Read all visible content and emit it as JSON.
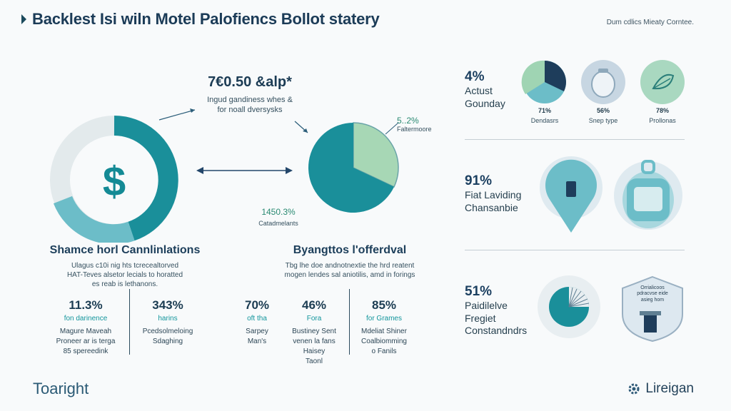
{
  "header": {
    "title": "Backlest Isi wiln Motel Palofiencs Bollot statery",
    "note": "Dum cdlics Mieaty Corntee."
  },
  "left_panel": {
    "callout_value": "7€0.50 &alp*",
    "callout_text_1": "Ingud gandiness whes &",
    "callout_text_2": "for noall dversysks",
    "section_title": "Shamce horl Cannlinlations",
    "section_desc_1": "Ulagus c10i nig hts tcrecealtorved",
    "section_desc_2": "HAT-Teves alsetor lecials to horatted",
    "section_desc_3": "es reab is lethanons.",
    "stats": [
      {
        "value": "11.3%",
        "label": "fon darinence",
        "desc": [
          "Magure Maveah",
          "Proneer ar is terga",
          "85 spereedink"
        ]
      },
      {
        "value": "343%",
        "label": "harins",
        "desc": [
          "Pcedsolmeloing",
          "Sdaghing"
        ]
      }
    ]
  },
  "middle_panel": {
    "pie_label_value": "5..2%",
    "pie_label_text": "Faltermoore",
    "bottom_value": "1450.3%",
    "bottom_text": "Catadmelants",
    "section_title": "Byangttos l'offerdval",
    "section_desc_1": "Tbg lhe doe andnotnextie the hrd reatent",
    "section_desc_2": "mogen lendes sal aniotilis, amd in forings",
    "stats": [
      {
        "value": "70%",
        "label": "oft tha",
        "desc": [
          "Sarpey",
          "Man's"
        ]
      },
      {
        "value": "46%",
        "label": "Fora",
        "desc": [
          "Bustiney Sent",
          "venen la fans",
          "Haisey",
          "Taonl"
        ]
      },
      {
        "value": "85%",
        "label": "for Grames",
        "desc": [
          "Mdeliat Shiner",
          "Coalbiomming",
          "o Fanils"
        ]
      }
    ]
  },
  "right_panel": {
    "row1": {
      "value": "4%",
      "label": [
        "Actust",
        "Gounday"
      ],
      "icons": [
        {
          "pct": "71%",
          "label": "Dendasrs"
        },
        {
          "pct": "56%",
          "label": "Snep type"
        },
        {
          "pct": "78%",
          "label": "Prollonas"
        }
      ]
    },
    "row2": {
      "value": "91%",
      "label": [
        "Fiat Laviding",
        "Chansanbie"
      ]
    },
    "row3": {
      "value": "51%",
      "label": [
        "Paidilelve",
        "Fregiet",
        "Constandndrs"
      ],
      "badge_text": [
        "Orrialicoos",
        "pdracvse eide",
        "asieg hom"
      ]
    }
  },
  "footer": {
    "left_logo": "Toaright",
    "right_logo": "Lireigan"
  },
  "colors": {
    "teal": "#1a8f9a",
    "light_teal": "#6cc0cb",
    "pale_green": "#9fd4b3",
    "navy": "#1e3d5b"
  },
  "chart_data": {
    "type": "pie",
    "values": [
      68,
      32
    ],
    "colors": [
      "#1a8f9a",
      "#a7d7b5"
    ]
  }
}
